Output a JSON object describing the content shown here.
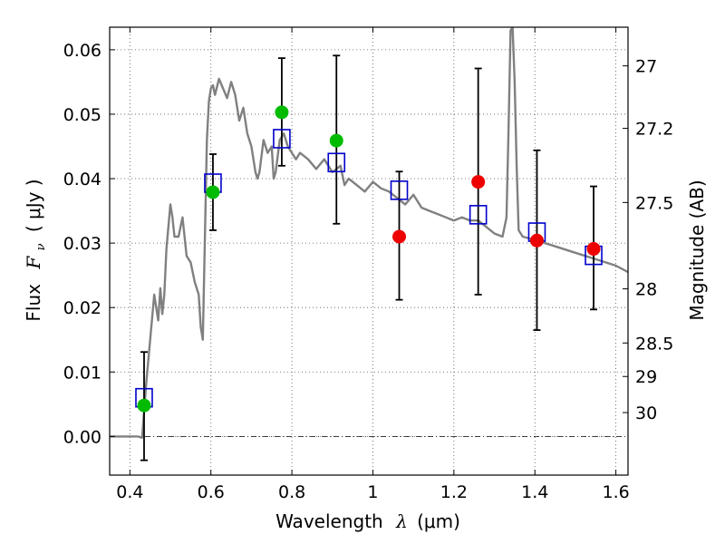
{
  "chart_data": {
    "type": "scatter",
    "xlabel": {
      "prefix": "Wavelength",
      "symbol": "λ",
      "unit": "(μm)"
    },
    "ylabel": {
      "prefix": "Flux",
      "symbol": "F",
      "subscript": "ν",
      "unit": "( μJy )"
    },
    "y2label": "Magnitude (AB)",
    "xlim": [
      0.35,
      1.63
    ],
    "ylim": [
      -0.006,
      0.0635
    ],
    "grid": true,
    "grid_style": "dotted",
    "x_ticks": [
      0.4,
      0.6,
      0.8,
      1.0,
      1.2,
      1.4,
      1.6
    ],
    "x_tick_labels": [
      "0.4",
      "0.6",
      "0.8",
      "1",
      "1.2",
      "1.4",
      "1.6"
    ],
    "y_ticks": [
      0.0,
      0.01,
      0.02,
      0.03,
      0.04,
      0.05,
      0.06
    ],
    "y_tick_labels": [
      "0.00",
      "0.01",
      "0.02",
      "0.03",
      "0.04",
      "0.05",
      "0.06"
    ],
    "y2_ticks": [
      {
        "label": "27",
        "flux": 0.0575
      },
      {
        "label": "27.2",
        "flux": 0.0478
      },
      {
        "label": "27.5",
        "flux": 0.0363
      },
      {
        "label": "28",
        "flux": 0.0229
      },
      {
        "label": "28.5",
        "flux": 0.0145
      },
      {
        "label": "29",
        "flux": 0.0093
      },
      {
        "label": "30",
        "flux": 0.0037
      }
    ],
    "series": [
      {
        "kind": "line",
        "color": "#808080",
        "x": [
          0.35,
          0.42,
          0.43,
          0.44,
          0.45,
          0.46,
          0.47,
          0.475,
          0.48,
          0.485,
          0.49,
          0.5,
          0.505,
          0.51,
          0.52,
          0.53,
          0.54,
          0.55,
          0.56,
          0.57,
          0.575,
          0.58,
          0.59,
          0.595,
          0.6,
          0.605,
          0.61,
          0.62,
          0.63,
          0.64,
          0.65,
          0.66,
          0.67,
          0.68,
          0.69,
          0.7,
          0.71,
          0.715,
          0.72,
          0.73,
          0.74,
          0.75,
          0.755,
          0.76,
          0.77,
          0.78,
          0.79,
          0.8,
          0.81,
          0.82,
          0.84,
          0.86,
          0.88,
          0.9,
          0.92,
          0.93,
          0.94,
          0.96,
          0.98,
          1.0,
          1.02,
          1.04,
          1.06,
          1.08,
          1.1,
          1.12,
          1.14,
          1.16,
          1.18,
          1.2,
          1.22,
          1.24,
          1.26,
          1.28,
          1.3,
          1.32,
          1.33,
          1.335,
          1.34,
          1.345,
          1.35,
          1.355,
          1.36,
          1.37,
          1.4,
          1.45,
          1.5,
          1.55,
          1.6,
          1.63
        ],
        "y": [
          0.0,
          0.0,
          -0.0002,
          0.008,
          0.015,
          0.022,
          0.018,
          0.023,
          0.019,
          0.022,
          0.029,
          0.036,
          0.034,
          0.031,
          0.031,
          0.034,
          0.028,
          0.027,
          0.024,
          0.022,
          0.017,
          0.015,
          0.046,
          0.052,
          0.054,
          0.0545,
          0.053,
          0.0555,
          0.054,
          0.0525,
          0.055,
          0.053,
          0.049,
          0.051,
          0.047,
          0.045,
          0.041,
          0.04,
          0.041,
          0.046,
          0.044,
          0.045,
          0.04,
          0.041,
          0.046,
          0.047,
          0.045,
          0.044,
          0.043,
          0.044,
          0.043,
          0.0415,
          0.043,
          0.041,
          0.042,
          0.039,
          0.04,
          0.039,
          0.038,
          0.0395,
          0.0385,
          0.038,
          0.037,
          0.036,
          0.0375,
          0.0355,
          0.035,
          0.0345,
          0.034,
          0.0335,
          0.034,
          0.0335,
          0.0335,
          0.0325,
          0.0315,
          0.031,
          0.034,
          0.048,
          0.063,
          0.0635,
          0.055,
          0.042,
          0.032,
          0.031,
          0.0305,
          0.0295,
          0.0285,
          0.0275,
          0.0265,
          0.0255
        ]
      },
      {
        "kind": "errorbar",
        "color": "#000000",
        "x": [
          0.435,
          0.605,
          0.775,
          0.91,
          1.065,
          1.26,
          1.405,
          1.545
        ],
        "low": [
          -0.0037,
          0.032,
          0.042,
          0.033,
          0.0212,
          0.022,
          0.0165,
          0.0197
        ],
        "high": [
          0.0131,
          0.0438,
          0.0587,
          0.0591,
          0.0411,
          0.0571,
          0.0444,
          0.0388
        ]
      },
      {
        "kind": "markers",
        "marker": "open-square",
        "color": "#0000cc",
        "x": [
          0.435,
          0.605,
          0.775,
          0.91,
          1.065,
          1.26,
          1.405,
          1.545
        ],
        "y": [
          0.006,
          0.0393,
          0.0462,
          0.0425,
          0.0382,
          0.0344,
          0.0317,
          0.0281
        ]
      },
      {
        "kind": "markers",
        "marker": "filled-circle",
        "color": "#00bb00",
        "x": [
          0.435,
          0.605,
          0.775,
          0.91
        ],
        "y": [
          0.0048,
          0.0379,
          0.0503,
          0.0459
        ]
      },
      {
        "kind": "markers",
        "marker": "filled-circle",
        "color": "#ee0000",
        "x": [
          1.065,
          1.26,
          1.405,
          1.545
        ],
        "y": [
          0.031,
          0.0395,
          0.0304,
          0.0291
        ]
      }
    ]
  }
}
